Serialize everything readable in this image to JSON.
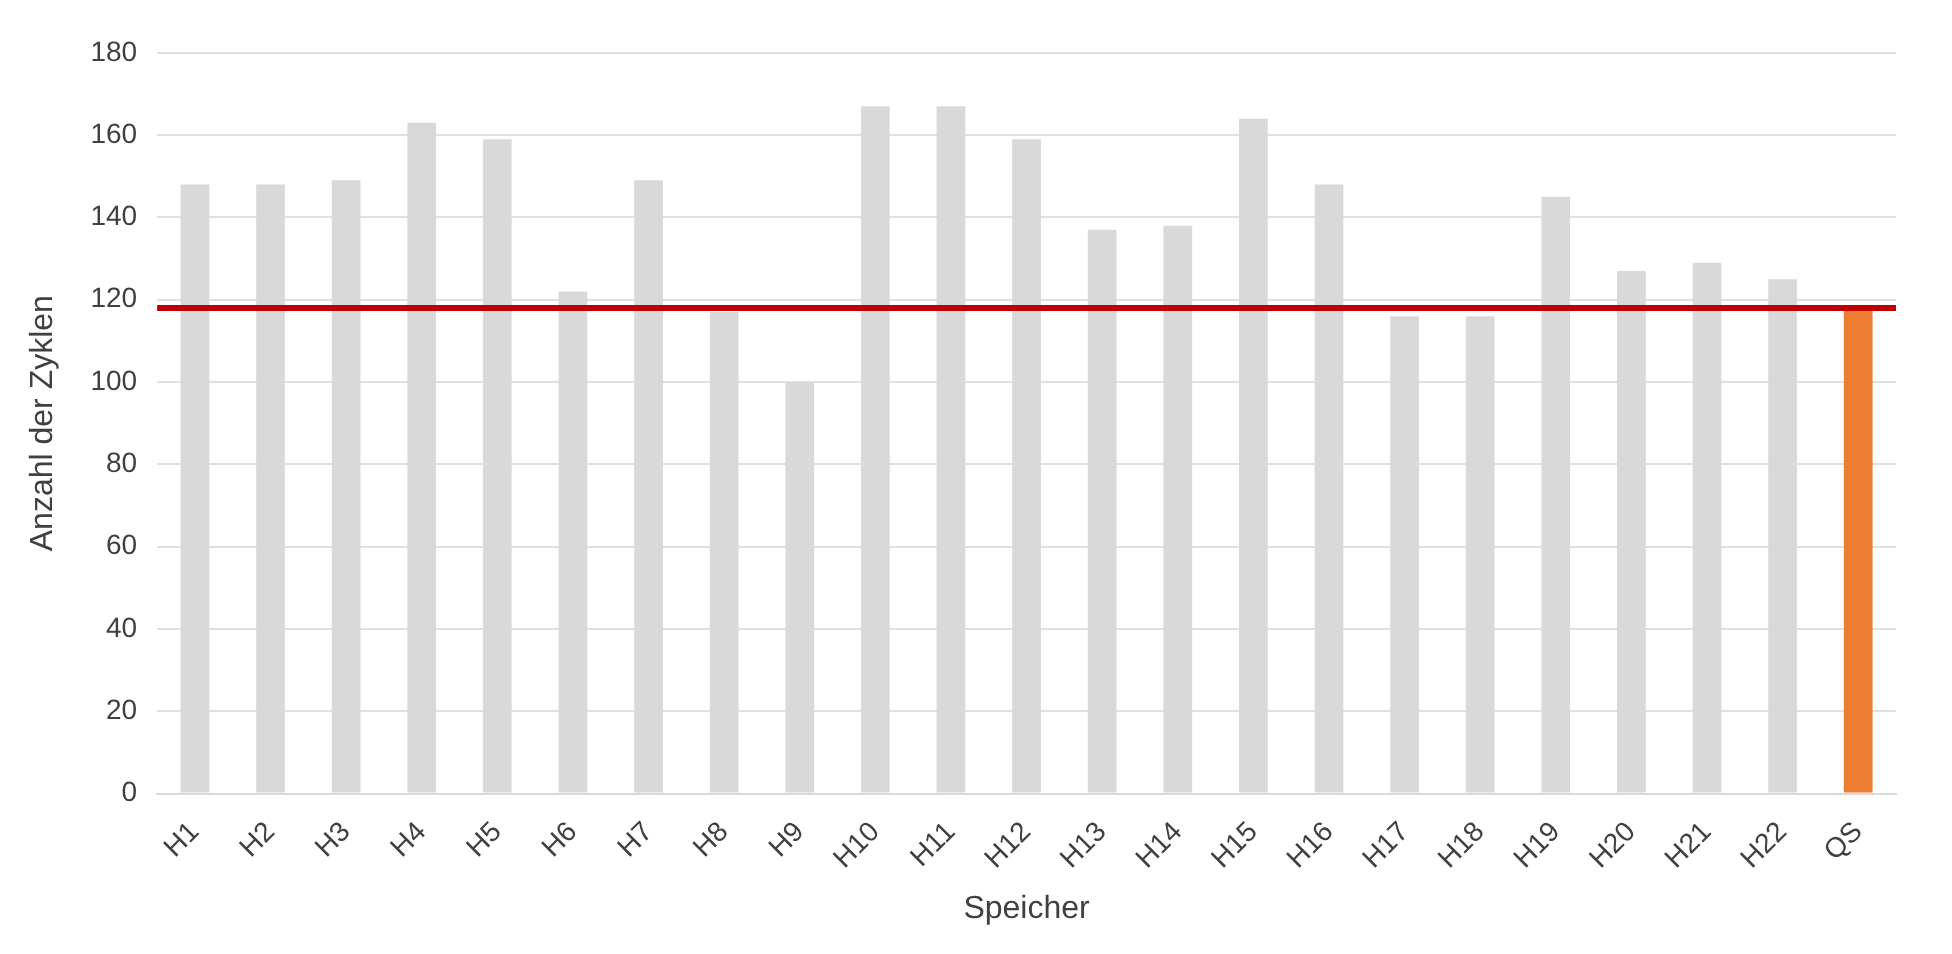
{
  "chart_data": {
    "type": "bar",
    "xlabel": "Speicher",
    "ylabel": "Anzahl der Zyklen",
    "categories": [
      "H1",
      "H2",
      "H3",
      "H4",
      "H5",
      "H6",
      "H7",
      "H8",
      "H9",
      "H10",
      "H11",
      "H12",
      "H13",
      "H14",
      "H15",
      "H16",
      "H17",
      "H18",
      "H19",
      "H20",
      "H21",
      "H22",
      "QS"
    ],
    "values": [
      148,
      148,
      149,
      163,
      159,
      122,
      149,
      117,
      100,
      167,
      167,
      159,
      137,
      138,
      164,
      148,
      116,
      116,
      145,
      127,
      129,
      125,
      118
    ],
    "colors": [
      "#d9d9d9",
      "#d9d9d9",
      "#d9d9d9",
      "#d9d9d9",
      "#d9d9d9",
      "#d9d9d9",
      "#d9d9d9",
      "#d9d9d9",
      "#d9d9d9",
      "#d9d9d9",
      "#d9d9d9",
      "#d9d9d9",
      "#d9d9d9",
      "#d9d9d9",
      "#d9d9d9",
      "#d9d9d9",
      "#d9d9d9",
      "#d9d9d9",
      "#d9d9d9",
      "#d9d9d9",
      "#d9d9d9",
      "#d9d9d9",
      "#ed7d31"
    ],
    "ylim": [
      0,
      180
    ],
    "yticks": [
      0,
      20,
      40,
      60,
      80,
      100,
      120,
      140,
      160,
      180
    ],
    "ref_lines": [
      {
        "axis": "y",
        "value": 118,
        "color": "#c00000"
      }
    ],
    "grid": "y",
    "legend": false
  }
}
